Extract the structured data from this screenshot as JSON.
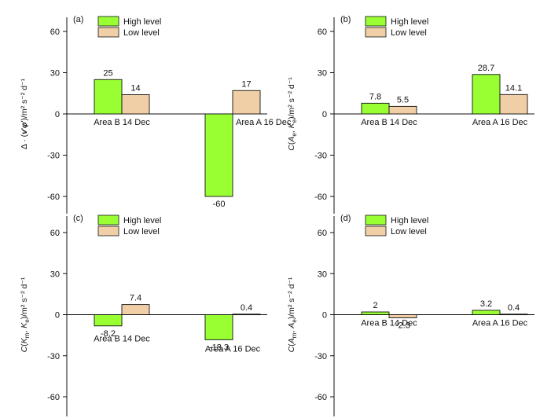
{
  "chart_data": [
    {
      "type": "bar",
      "panel_label": "(a)",
      "ylabel": "Δ · (v'φ')/m²s⁻²d⁻¹",
      "ylim": [
        -70,
        70
      ],
      "yticks": [
        60,
        30,
        0,
        -30,
        -60
      ],
      "categories": [
        "Area B 14 Dec",
        "Area A 16 Dec"
      ],
      "series": [
        {
          "name": "High level",
          "values": [
            25,
            -60
          ],
          "labels": [
            "25",
            "-60"
          ]
        },
        {
          "name": "Low level",
          "values": [
            14,
            17
          ],
          "labels": [
            "14",
            "17"
          ]
        }
      ]
    },
    {
      "type": "bar",
      "panel_label": "(b)",
      "ylabel": "C(Ae, Ke)/m²s⁻²d⁻¹",
      "ylim": [
        -70,
        70
      ],
      "yticks": [
        60,
        30,
        0,
        -30,
        -60
      ],
      "categories": [
        "Area B 14 Dec",
        "Area A 16 Dec"
      ],
      "series": [
        {
          "name": "High level",
          "values": [
            7.8,
            28.7
          ],
          "labels": [
            "7.8",
            "28.7"
          ]
        },
        {
          "name": "Low level",
          "values": [
            5.5,
            14.1
          ],
          "labels": [
            "5.5",
            "14.1"
          ]
        }
      ]
    },
    {
      "type": "bar",
      "panel_label": "(c)",
      "ylabel": "C(Km, Ke)/m²s⁻²d⁻¹",
      "ylim": [
        -70,
        70
      ],
      "yticks": [
        60,
        30,
        0,
        -30,
        -60
      ],
      "categories": [
        "Area B 14 Dec",
        "Area A 16 Dec"
      ],
      "series": [
        {
          "name": "High level",
          "values": [
            -8.2,
            -18.3
          ],
          "labels": [
            "-8.2",
            "-18.3"
          ]
        },
        {
          "name": "Low level",
          "values": [
            7.4,
            0.4
          ],
          "labels": [
            "7.4",
            "0.4"
          ]
        }
      ]
    },
    {
      "type": "bar",
      "panel_label": "(d)",
      "ylabel": "C(Am, Ae)/m²s⁻²d⁻¹",
      "ylim": [
        -70,
        70
      ],
      "yticks": [
        60,
        30,
        0,
        -30,
        -60
      ],
      "categories": [
        "Area B 14 Dec",
        "Area A 16 Dec"
      ],
      "series": [
        {
          "name": "High level",
          "values": [
            2,
            3.2
          ],
          "labels": [
            "2",
            "3.2"
          ]
        },
        {
          "name": "Low level",
          "values": [
            -2.3,
            0.4
          ],
          "labels": [
            "-2.3",
            "0.4"
          ]
        }
      ]
    }
  ],
  "colors": {
    "high_level": "#99ff33",
    "low_level": "#f0cfa6",
    "axis": "#111111"
  }
}
